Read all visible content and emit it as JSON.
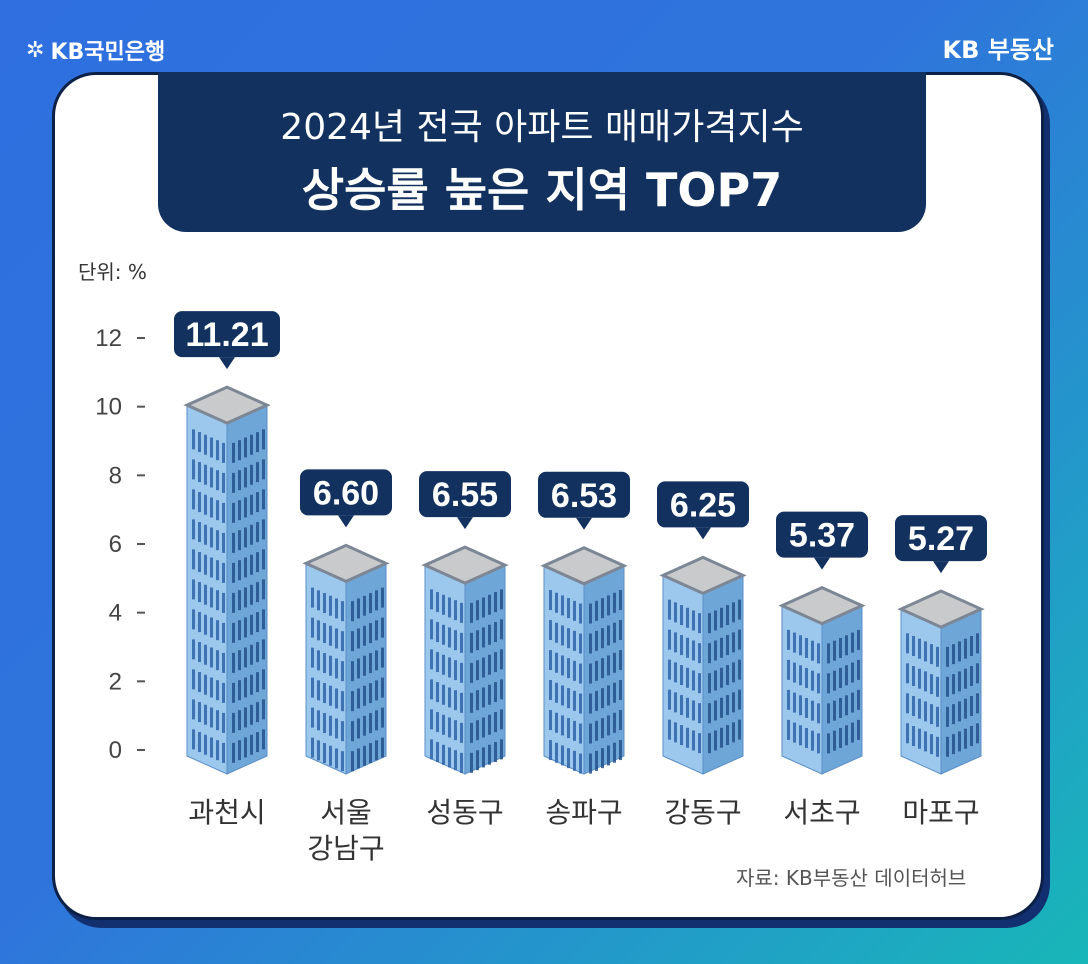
{
  "header": {
    "brand_left": "KB국민은행",
    "brand_right": "KB 부동산"
  },
  "title": {
    "line1": "2024년 전국 아파트 매매가격지수",
    "line2": "상승률 높은 지역 TOP7"
  },
  "unit_label": "단위: %",
  "source": "자료: KB부동산 데이터허브",
  "colors": {
    "navy": "#12315f",
    "bar_front": "#9cc8ee",
    "bar_side": "#6ea6d8",
    "roof": "#c9cacc",
    "window": "#2f63a8"
  },
  "chart_data": {
    "type": "bar",
    "title": "2024년 전국 아파트 매매가격지수 상승률 높은 지역 TOP7",
    "ylabel": "단위: %",
    "ylim": [
      0,
      12
    ],
    "yticks": [
      0,
      2,
      4,
      6,
      8,
      10,
      12
    ],
    "categories": [
      [
        "과천시"
      ],
      [
        "서울",
        "강남구"
      ],
      [
        "성동구"
      ],
      [
        "송파구"
      ],
      [
        "강동구"
      ],
      [
        "서초구"
      ],
      [
        "마포구"
      ]
    ],
    "values": [
      11.21,
      6.6,
      6.55,
      6.53,
      6.25,
      5.37,
      5.27
    ],
    "labels": [
      "11.21",
      "6.60",
      "6.55",
      "6.53",
      "6.25",
      "5.37",
      "5.27"
    ]
  }
}
